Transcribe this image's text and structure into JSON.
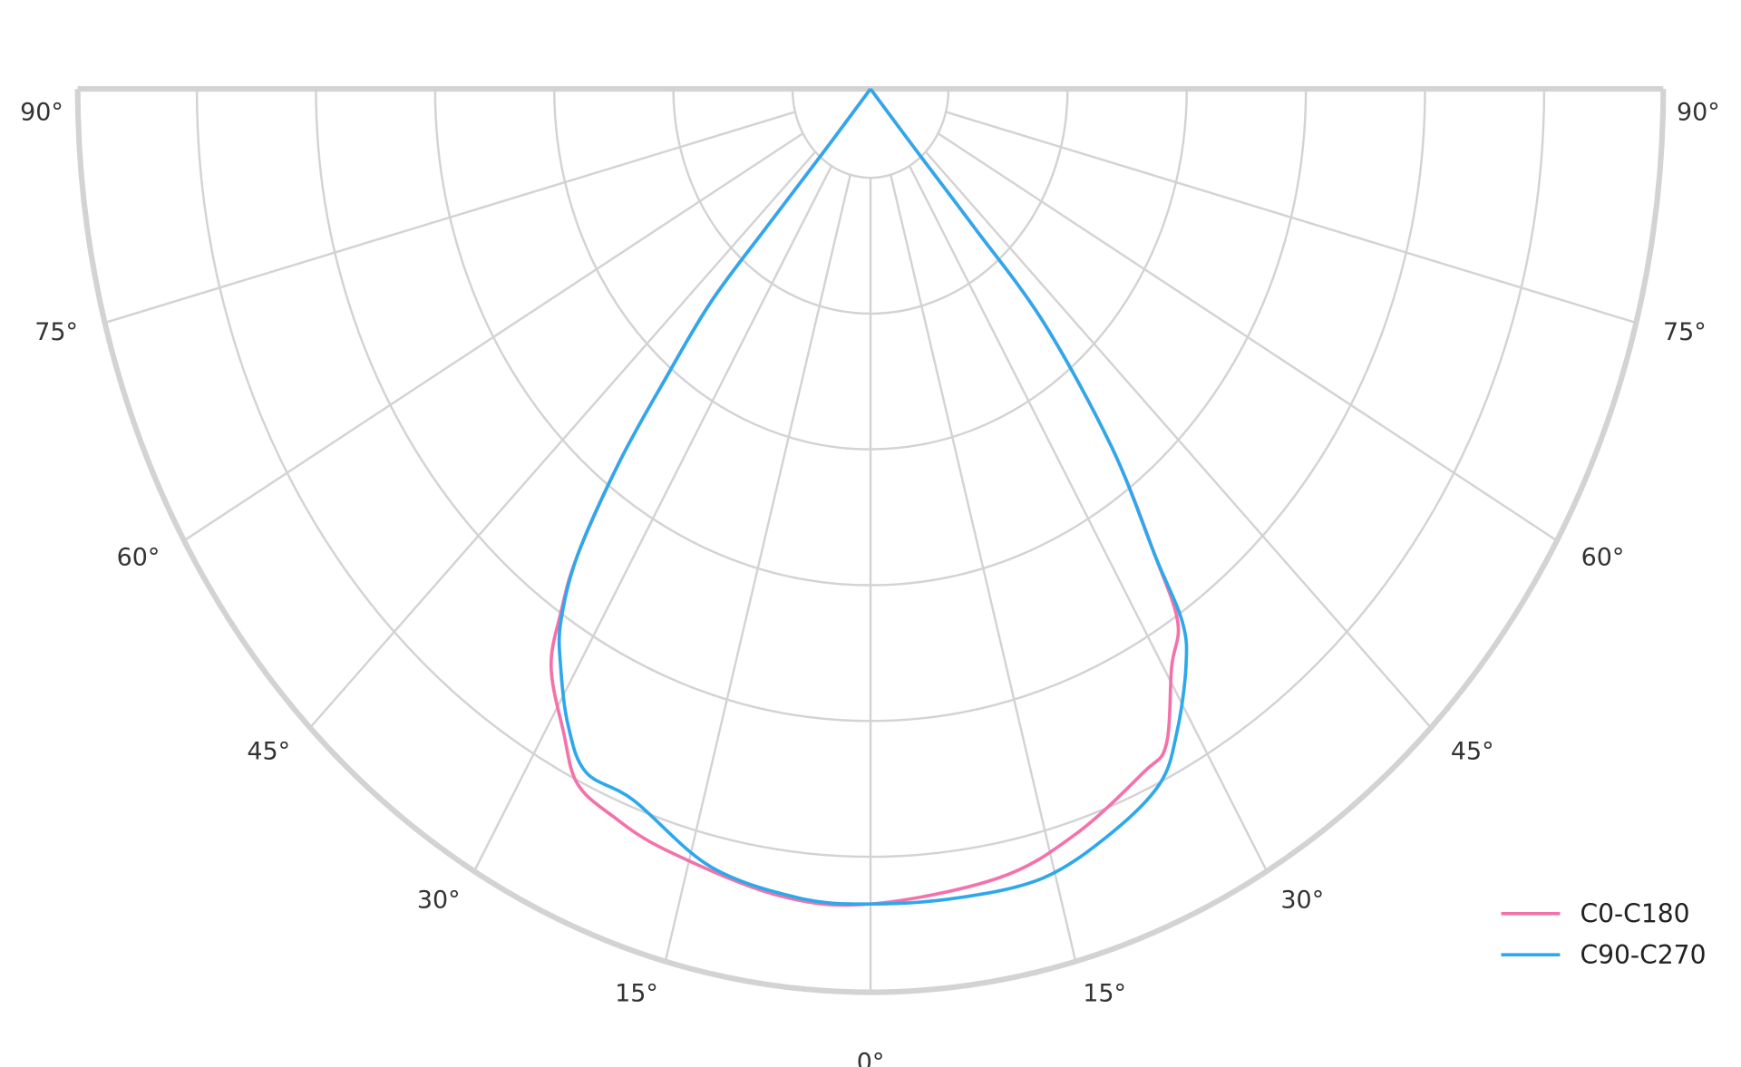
{
  "chart_data": {
    "type": "polar",
    "title": "",
    "angle_unit": "degrees",
    "angle_ticks": [
      0,
      15,
      30,
      45,
      60,
      75,
      90
    ],
    "angle_tick_labels": {
      "0": "0°",
      "15": "15°",
      "30": "30°",
      "45": "45°",
      "60": "60°",
      "75": "75°",
      "90": "90°"
    },
    "radial_rings": 7,
    "radial_labels_shown": false,
    "grid": true,
    "legend_position": "bottom-right",
    "colors": {
      "grid": "#d3d3d3",
      "text": "#333333"
    },
    "series": [
      {
        "name": "C0-C180",
        "color": "#f472aa",
        "left": [
          [
            0,
            0.902
          ],
          [
            7.5,
            0.9
          ],
          [
            17,
            0.881
          ],
          [
            22,
            0.868
          ],
          [
            25.7,
            0.853
          ],
          [
            28.5,
            0.811
          ],
          [
            32.2,
            0.756
          ],
          [
            34,
            0.698
          ],
          [
            35.6,
            0.635
          ],
          [
            37.5,
            0.52
          ],
          [
            38.9,
            0.411
          ],
          [
            40.5,
            0.309
          ],
          [
            40.6,
            0.2
          ],
          [
            40.3,
            0.096
          ],
          [
            40,
            0
          ]
        ],
        "right": [
          [
            0,
            0.902
          ],
          [
            10.5,
            0.888
          ],
          [
            17.5,
            0.864
          ],
          [
            24.5,
            0.831
          ],
          [
            27.2,
            0.816
          ],
          [
            30.7,
            0.744
          ],
          [
            33.3,
            0.706
          ],
          [
            34.8,
            0.629
          ],
          [
            37.5,
            0.5
          ],
          [
            40.2,
            0.338
          ],
          [
            40.5,
            0.2
          ],
          [
            40.3,
            0.096
          ],
          [
            40,
            0
          ]
        ]
      },
      {
        "name": "C90-C270",
        "color": "#2ea8ec",
        "left": [
          [
            0,
            0.902
          ],
          [
            5.7,
            0.9
          ],
          [
            13.2,
            0.884
          ],
          [
            20.8,
            0.842
          ],
          [
            25.4,
            0.837
          ],
          [
            28.5,
            0.8
          ],
          [
            31.4,
            0.75
          ],
          [
            33.5,
            0.708
          ],
          [
            35.6,
            0.635
          ],
          [
            37.5,
            0.52
          ],
          [
            38.9,
            0.411
          ],
          [
            40.5,
            0.309
          ],
          [
            40.6,
            0.2
          ],
          [
            40.3,
            0.096
          ],
          [
            40,
            0
          ]
        ],
        "right": [
          [
            0,
            0.902
          ],
          [
            7,
            0.902
          ],
          [
            14,
            0.9
          ],
          [
            20.2,
            0.878
          ],
          [
            25.4,
            0.851
          ],
          [
            28.5,
            0.81
          ],
          [
            31.9,
            0.753
          ],
          [
            33.7,
            0.709
          ],
          [
            34.8,
            0.629
          ],
          [
            37.5,
            0.5
          ],
          [
            40.2,
            0.338
          ],
          [
            40.5,
            0.2
          ],
          [
            40.3,
            0.096
          ],
          [
            40,
            0
          ]
        ]
      }
    ]
  }
}
